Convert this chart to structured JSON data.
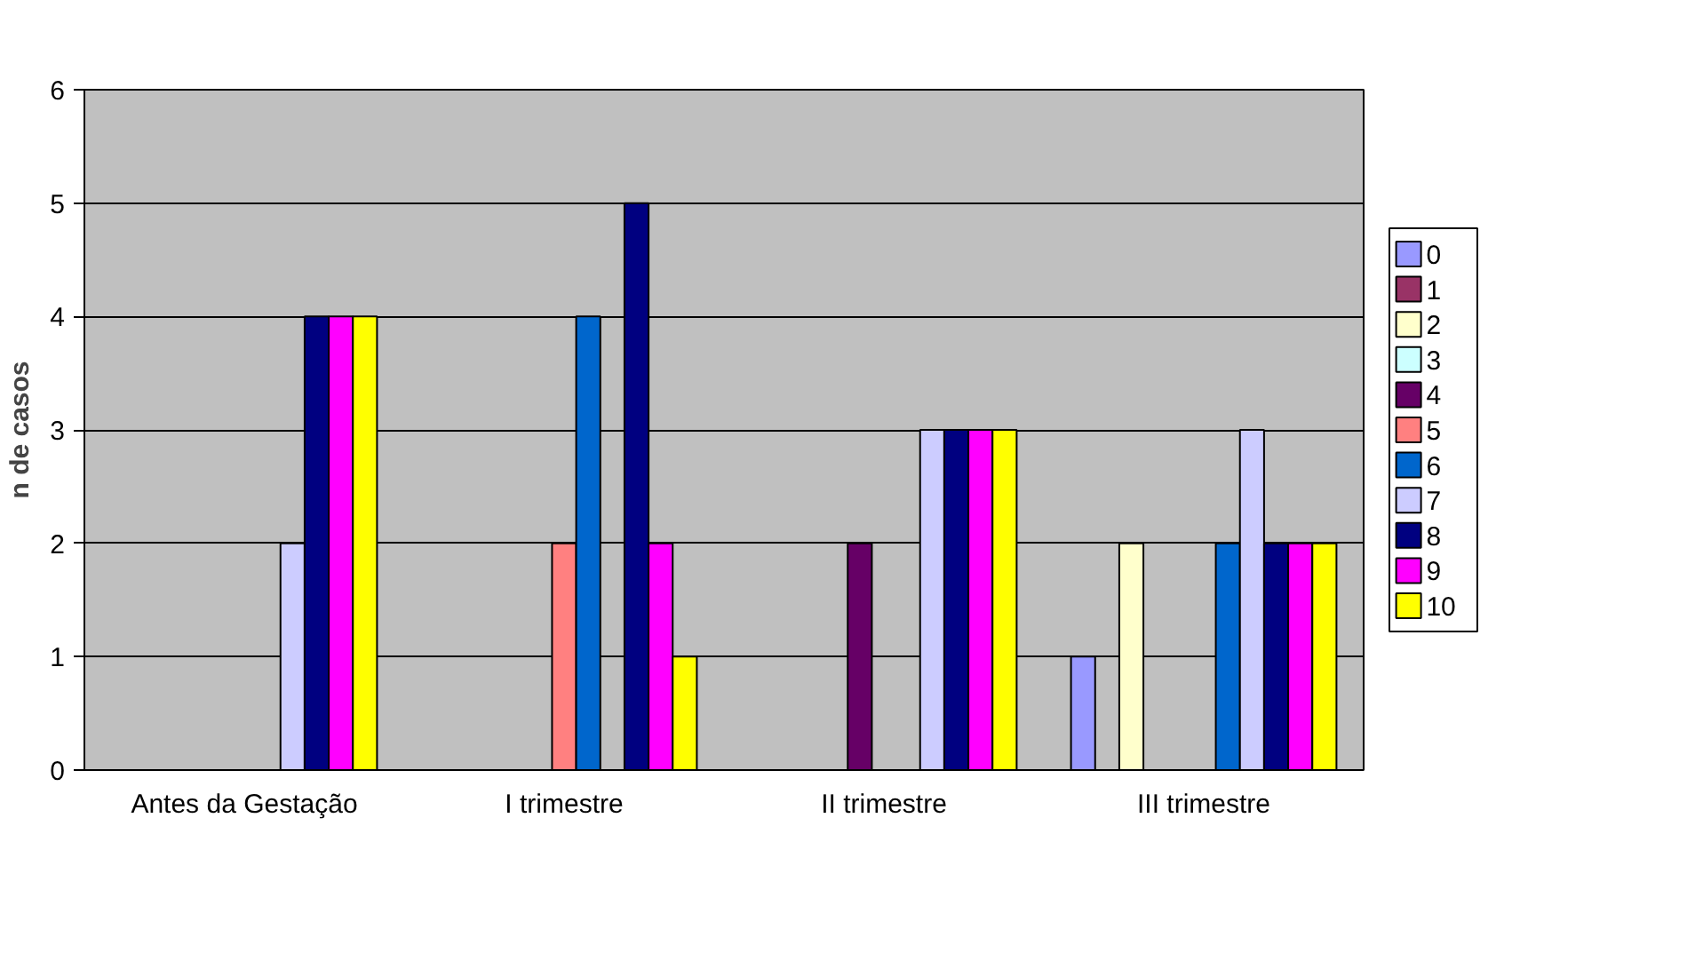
{
  "chart_data": {
    "type": "bar",
    "ylabel": "n de casos",
    "categories": [
      "Antes da Gestação",
      "I trimestre",
      "II trimestre",
      "III trimestre"
    ],
    "ylim": [
      0,
      6
    ],
    "yticks": [
      0,
      1,
      2,
      3,
      4,
      5,
      6
    ],
    "grid": "y",
    "legend": "right",
    "series": [
      {
        "name": "0",
        "color": "#9999ff",
        "values": [
          null,
          null,
          null,
          1
        ]
      },
      {
        "name": "1",
        "color": "#993366",
        "values": [
          null,
          null,
          null,
          null
        ]
      },
      {
        "name": "2",
        "color": "#ffffcc",
        "values": [
          null,
          null,
          null,
          2
        ]
      },
      {
        "name": "3",
        "color": "#ccffff",
        "values": [
          null,
          null,
          null,
          null
        ]
      },
      {
        "name": "4",
        "color": "#660066",
        "values": [
          null,
          null,
          2,
          null
        ]
      },
      {
        "name": "5",
        "color": "#ff8080",
        "values": [
          null,
          2,
          null,
          null
        ]
      },
      {
        "name": "6",
        "color": "#0066cc",
        "values": [
          null,
          4,
          null,
          2
        ]
      },
      {
        "name": "7",
        "color": "#ccccff",
        "values": [
          2,
          null,
          3,
          3
        ]
      },
      {
        "name": "8",
        "color": "#000080",
        "values": [
          4,
          5,
          3,
          2
        ]
      },
      {
        "name": "9",
        "color": "#ff00ff",
        "values": [
          4,
          2,
          3,
          2
        ]
      },
      {
        "name": "10",
        "color": "#ffff00",
        "values": [
          4,
          1,
          3,
          2
        ]
      }
    ]
  }
}
